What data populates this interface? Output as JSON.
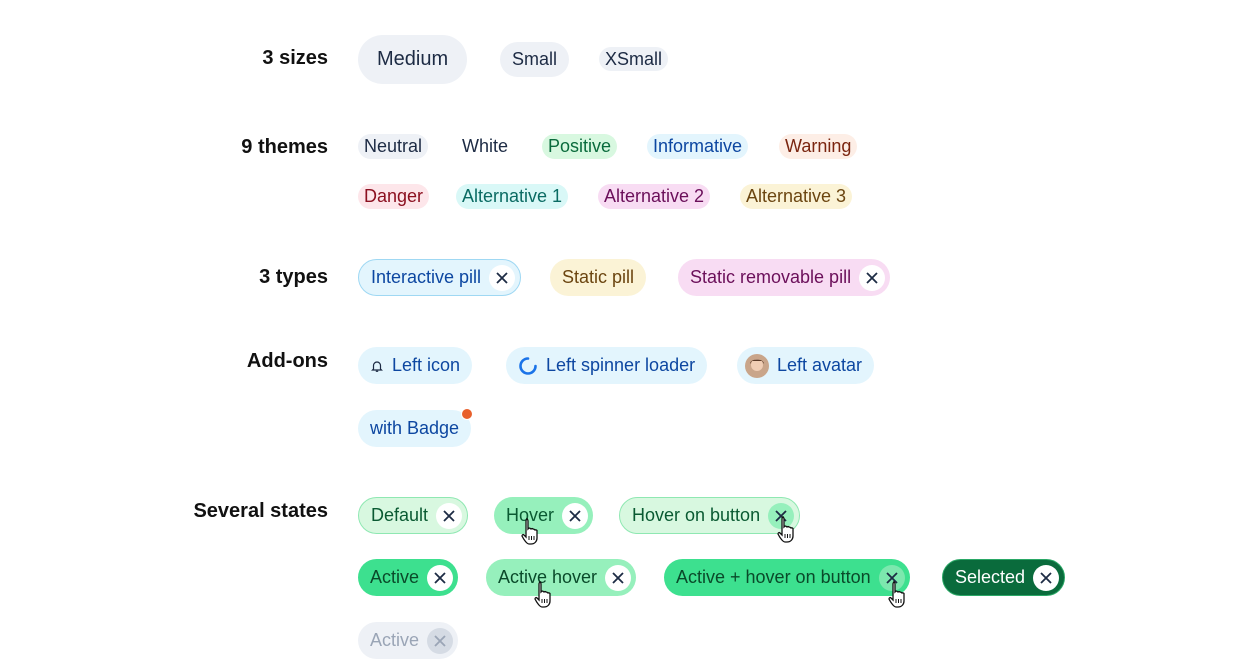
{
  "sections": {
    "sizes": "3 sizes",
    "themes": "9 themes",
    "types": "3 types",
    "addons": "Add-ons",
    "states": "Several states"
  },
  "sizes": [
    "Medium",
    "Small",
    "XSmall"
  ],
  "themes": [
    "Neutral",
    "White",
    "Positive",
    "Informative",
    "Warning",
    "Danger",
    "Alternative 1",
    "Alternative 2",
    "Alternative 3"
  ],
  "types": [
    "Interactive pill",
    "Static pill",
    "Static removable pill"
  ],
  "addons": [
    "Left icon",
    "Left spinner loader",
    "Left avatar",
    "with Badge"
  ],
  "states": [
    "Default",
    "Hover",
    "Hover on button",
    "Active",
    "Active hover",
    "Active + hover on button",
    "Selected",
    "Active"
  ],
  "colors": {
    "positive": "#d8f8e0",
    "active": "#3de08f",
    "selected": "#0a6b3c",
    "informative": "#e3f5fd",
    "badge": "#e8602c"
  }
}
